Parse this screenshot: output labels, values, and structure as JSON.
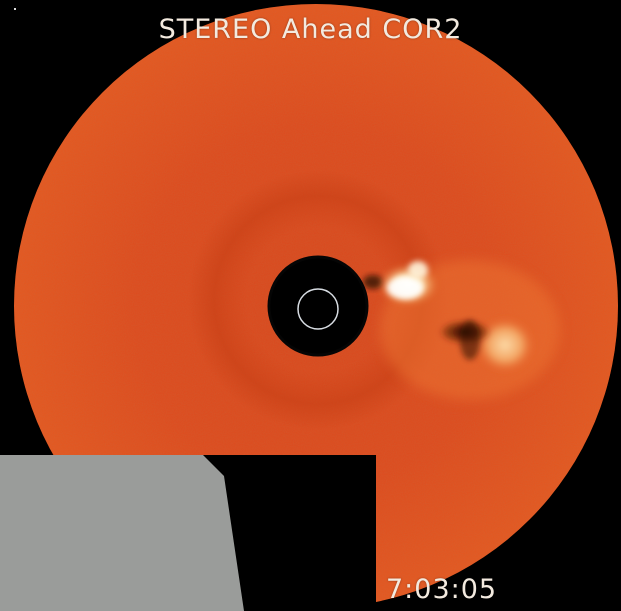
{
  "image": {
    "title": "STEREO Ahead COR2",
    "timestamp": "7:03:05",
    "colors": {
      "background": "#000000",
      "corona_field": "#e0461d",
      "corona_field_dark": "#c53a12",
      "occulter": "#000000",
      "sun_limb": "#d8dde3",
      "cme_bright": "#fff7e8",
      "gray_overlay": "#9a9c9a"
    }
  }
}
